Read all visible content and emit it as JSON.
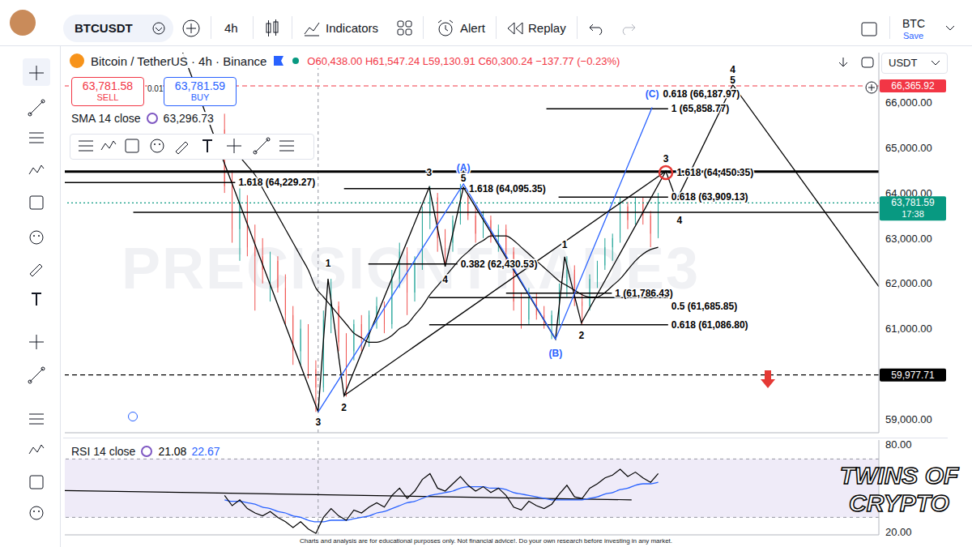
{
  "toolbar": {
    "symbol": "BTCUSDT",
    "interval": "4h",
    "indicators": "Indicators",
    "alert": "Alert",
    "replay": "Replay",
    "layout_name": "BTC",
    "save": "Save"
  },
  "chart_data": [
    {
      "type": "candlestick",
      "title": "Bitcoin / TetherUS · 4h · Binance",
      "ohlc": "O60,438.00 H61,547.24 L59,130.91 C60,300.24 −137.77 (−0.23%)",
      "currency": "USDT",
      "sell": {
        "price": "63,781.58",
        "label": "SELL"
      },
      "spread": "0.01",
      "buy": {
        "price": "63,781.59",
        "label": "BUY"
      },
      "x": [
        0,
        1,
        2,
        3,
        4,
        5,
        6,
        7,
        8,
        9,
        10,
        11,
        12,
        13,
        14,
        15,
        16,
        17,
        18,
        19,
        20,
        21,
        22,
        23,
        24,
        25,
        26,
        27,
        28,
        29,
        30,
        31,
        32,
        33,
        34,
        35,
        36,
        37,
        38,
        39,
        40,
        41,
        42,
        43,
        44,
        45,
        46,
        47,
        48,
        49,
        50,
        51,
        52,
        53,
        54,
        55,
        56,
        57
      ],
      "open": [
        65400,
        64150,
        63200,
        63800,
        62800,
        62600,
        62300,
        62500,
        61900,
        61300,
        60500,
        61000,
        60100,
        59700,
        61200,
        61500,
        60700,
        60500,
        61100,
        60800,
        61300,
        61500,
        61100,
        62100,
        62700,
        61800,
        62400,
        63500,
        63900,
        63000,
        62900,
        63400,
        63900,
        63500,
        63100,
        63400,
        63000,
        63200,
        62700,
        61600,
        61200,
        61700,
        61300,
        61100,
        61300,
        61900,
        62300,
        61600,
        61500,
        62100,
        62400,
        62800,
        63000,
        63700,
        63400,
        63800,
        63500,
        63100
      ],
      "high": [
        65750,
        64500,
        64100,
        63950,
        63300,
        63000,
        62700,
        62600,
        62200,
        61500,
        61200,
        61100,
        60300,
        61400,
        62100,
        61600,
        60900,
        61200,
        61300,
        61400,
        61700,
        61600,
        62300,
        62900,
        62800,
        62600,
        63700,
        64150,
        64000,
        63200,
        63500,
        64200,
        64000,
        63700,
        63600,
        63500,
        63300,
        63300,
        62800,
        61800,
        61900,
        61800,
        61500,
        61400,
        62000,
        62600,
        62400,
        61800,
        62200,
        62500,
        63000,
        63100,
        63900,
        63800,
        63900,
        63900,
        63600,
        64000
      ],
      "low": [
        64000,
        62900,
        62500,
        62600,
        61400,
        62000,
        61600,
        61800,
        61100,
        60200,
        60200,
        59900,
        59160,
        59600,
        60900,
        60500,
        59500,
        60300,
        60500,
        60600,
        61000,
        60900,
        61000,
        61900,
        61300,
        61600,
        62300,
        63200,
        62700,
        62400,
        62700,
        63300,
        63400,
        62900,
        63000,
        62900,
        62700,
        62500,
        61400,
        61000,
        61100,
        61200,
        61000,
        60770,
        61100,
        61700,
        61500,
        61100,
        61400,
        61900,
        62300,
        62500,
        62900,
        63200,
        63300,
        63300,
        62800,
        63000
      ],
      "close": [
        64150,
        63200,
        63800,
        62800,
        62600,
        62300,
        62500,
        61900,
        61300,
        60500,
        61000,
        60100,
        59700,
        61200,
        61500,
        60700,
        60500,
        61100,
        60800,
        61300,
        61500,
        61100,
        62100,
        62700,
        61800,
        62400,
        63500,
        63900,
        63000,
        62900,
        63400,
        63900,
        63500,
        63100,
        63400,
        63000,
        63200,
        62700,
        61600,
        61200,
        61700,
        61300,
        61100,
        61300,
        61900,
        62300,
        61600,
        61500,
        62100,
        62400,
        62800,
        63000,
        63700,
        63400,
        63800,
        63500,
        63100,
        63781.59
      ],
      "up_color": "#26a69a",
      "down_color": "#ef5350",
      "series": [
        {
          "name": "SMA 14 close",
          "legend_value": "63,296.73",
          "color": "#000000",
          "values": [
            65200,
            65000,
            64800,
            64600,
            64400,
            64100,
            63800,
            63500,
            63200,
            62900,
            62600,
            62300,
            61900,
            61700,
            61500,
            61300,
            61100,
            60900,
            60800,
            60700,
            60700,
            60750,
            60850,
            61000,
            61100,
            61300,
            61500,
            61750,
            61950,
            62150,
            62350,
            62550,
            62700,
            62850,
            62950,
            63050,
            63050,
            63050,
            62950,
            62800,
            62650,
            62500,
            62350,
            62200,
            62050,
            61950,
            61850,
            61750,
            61700,
            61700,
            61800,
            61950,
            62100,
            62300,
            62500,
            62650,
            62750,
            62800
          ]
        }
      ],
      "xlim": [
        -21,
        86
      ],
      "ylim": [
        58700,
        67100
      ],
      "yticks": [
        {
          "value": 59000,
          "label": "59,000.00"
        },
        {
          "value": 61000,
          "label": "61,000.00"
        },
        {
          "value": 62000,
          "label": "62,000.00"
        },
        {
          "value": 63000,
          "label": "63,000.00"
        },
        {
          "value": 64000,
          "label": "64,000.00"
        },
        {
          "value": 65000,
          "label": "65,000.00"
        },
        {
          "value": 66000,
          "label": "66,000.00"
        }
      ],
      "tick_labels": "y",
      "grid": false,
      "crosshair_x": 12.3,
      "wave_lines": [
        {
          "color": "#000000",
          "points": [
            [
              -5.5,
              67100
            ],
            [
              12.3,
              59160
            ],
            [
              13.6,
              62100
            ],
            [
              15.7,
              59520
            ],
            [
              26.9,
              64125
            ],
            [
              29.0,
              62375
            ],
            [
              31.4,
              64125
            ],
            [
              43.5,
              60770
            ],
            [
              44.7,
              62590
            ],
            [
              46.9,
              61125
            ],
            [
              58.0,
              64480
            ],
            [
              59.4,
              63840
            ],
            [
              66.8,
              66390
            ],
            [
              86,
              61930
            ]
          ]
        },
        {
          "color": "#2962ff",
          "points": [
            [
              12.3,
              59160
            ],
            [
              31.4,
              64200
            ],
            [
              43.5,
              60770
            ],
            [
              56.2,
              65890
            ]
          ]
        },
        {
          "color": "#000000",
          "points": [
            [
              15.7,
              59520
            ],
            [
              58.0,
              64480
            ]
          ]
        }
      ],
      "wave_labels": [
        {
          "text": "3",
          "x": 12.3,
          "y": 58930,
          "color": "#000000"
        },
        {
          "text": "1",
          "x": 13.6,
          "y": 62450,
          "color": "#000000"
        },
        {
          "text": "2",
          "x": 15.7,
          "y": 59250,
          "color": "#000000"
        },
        {
          "text": "3",
          "x": 26.9,
          "y": 64450,
          "color": "#000000"
        },
        {
          "text": "4",
          "x": 29.0,
          "y": 62080,
          "color": "#000000"
        },
        {
          "text": "5",
          "x": 31.4,
          "y": 64330,
          "color": "#000000"
        },
        {
          "text": "(A)",
          "x": 31.4,
          "y": 64560,
          "color": "#2962ff"
        },
        {
          "text": "(B)",
          "x": 43.5,
          "y": 60450,
          "color": "#2962ff"
        },
        {
          "text": "1",
          "x": 44.7,
          "y": 62850,
          "color": "#000000"
        },
        {
          "text": "2",
          "x": 46.9,
          "y": 60850,
          "color": "#000000"
        },
        {
          "text": "3",
          "x": 58.0,
          "y": 64760,
          "color": "#000000"
        },
        {
          "text": "4",
          "x": 59.8,
          "y": 63400,
          "color": "#000000"
        },
        {
          "text": "4",
          "x": 66.8,
          "y": 66720,
          "color": "#000000"
        },
        {
          "text": "5",
          "x": 66.8,
          "y": 66500,
          "color": "#000000"
        },
        {
          "text": "(C)",
          "x": 56.2,
          "y": 66180,
          "color": "#2962ff"
        }
      ],
      "fib_levels": [
        {
          "label": "1.618 (64,229.27)",
          "value": 64229.27,
          "x": [
            -21,
            1.4
          ]
        },
        {
          "label": "1.618 (64,095.35)",
          "value": 64095.35,
          "x": [
            15.7,
            31.7
          ]
        },
        {
          "label": "0.382 (62,430.53)",
          "value": 62430.53,
          "x": [
            18.9,
            30.6
          ]
        },
        {
          "label": "0.5 (61,685.85)",
          "value": 61685.85,
          "x": [
            26.9,
            58.3
          ]
        },
        {
          "label": "0.618 (61,086.80)",
          "value": 61086.8,
          "x": [
            26.9,
            58.3
          ]
        },
        {
          "label": "1 (61,786.43)",
          "value": 61786.43,
          "x": [
            37,
            50.9
          ]
        },
        {
          "label": "0.618 (63,909.13)",
          "value": 63909.13,
          "x": [
            43.9,
            58.3
          ]
        },
        {
          "label": "1.618 (64,450.35)",
          "value": 64450.35,
          "x": [
            58.3,
            59.0
          ]
        },
        {
          "label": "0.618 (66,187.97)",
          "value": 66187.97,
          "x": [
            57.2,
            57.2
          ]
        },
        {
          "label": "1 (65,858.77)",
          "value": 65858.77,
          "x": [
            42.3,
            58.3
          ]
        }
      ],
      "levels": [
        {
          "value": 64470,
          "x": [
            -21,
            86
          ],
          "line_style": "thick"
        },
        {
          "value": 63570,
          "x": [
            -12,
            86
          ],
          "line_style": "solid"
        }
      ],
      "price_lines": [
        {
          "value": 66365.92,
          "label": "66,365.92",
          "color": "#f23645",
          "line_style": "dashed"
        },
        {
          "value": 59977.71,
          "label": "59,977.71",
          "color": "#000000",
          "line_style": "dashed"
        },
        {
          "value": 63781.59,
          "label": "63,781.59",
          "countdown": "17:38",
          "color": "#089981",
          "line_style": "dotted"
        }
      ]
    },
    {
      "type": "line",
      "title": "RSI 14 close",
      "legend_values": [
        "21.08",
        "22.67"
      ],
      "x": [
        0,
        1,
        2,
        3,
        4,
        5,
        6,
        7,
        8,
        9,
        10,
        11,
        12,
        13,
        14,
        15,
        16,
        17,
        18,
        19,
        20,
        21,
        22,
        23,
        24,
        25,
        26,
        27,
        28,
        29,
        30,
        31,
        32,
        33,
        34,
        35,
        36,
        37,
        38,
        39,
        40,
        41,
        42,
        43,
        44,
        45,
        46,
        47,
        48,
        49,
        50,
        51,
        52,
        53,
        54,
        55,
        56,
        57
      ],
      "series": [
        {
          "color": "#000000",
          "values": [
            45,
            38,
            42,
            36,
            33,
            31,
            34,
            30,
            27,
            23,
            27,
            22,
            19,
            30,
            36,
            31,
            28,
            35,
            33,
            37,
            40,
            37,
            45,
            50,
            43,
            48,
            56,
            60,
            50,
            48,
            53,
            58,
            52,
            48,
            51,
            47,
            50,
            45,
            37,
            35,
            41,
            38,
            36,
            39,
            46,
            52,
            44,
            43,
            50,
            53,
            57,
            59,
            63,
            58,
            61,
            57,
            54,
            60
          ]
        },
        {
          "color": "#2962ff",
          "values": [
            42,
            41,
            41,
            40,
            39,
            37,
            36,
            34,
            33,
            31,
            30,
            28,
            27,
            27,
            28,
            28,
            28,
            29,
            30,
            31,
            33,
            34,
            36,
            38,
            40,
            41,
            43,
            45,
            46,
            47,
            48,
            50,
            51,
            51,
            51,
            50,
            50,
            49,
            47,
            46,
            45,
            44,
            43,
            42,
            42,
            42,
            42,
            42,
            43,
            44,
            46,
            47,
            49,
            50,
            52,
            53,
            53,
            54
          ]
        }
      ],
      "trendline": {
        "x": [
          -21,
          53.5
        ],
        "values": [
          48.4,
          42
        ]
      },
      "band": [
        30,
        70
      ],
      "band_color": "#7e57c2",
      "xlim": [
        -21,
        86
      ],
      "ylim": [
        18,
        83
      ],
      "yticks": [
        {
          "value": 20,
          "label": "20.00"
        },
        {
          "value": 80,
          "label": "80.00"
        }
      ],
      "tick_labels": "y",
      "crosshair_x": 12.3
    }
  ],
  "footer": {
    "disclaimer": "Charts and analysis are for educational purposes only. Not financial advice!. Do your own research before investing in any market.",
    "watermark": "PRECISIONTRADE3",
    "logo": [
      "TWINS OF",
      "CRYPTO"
    ]
  }
}
